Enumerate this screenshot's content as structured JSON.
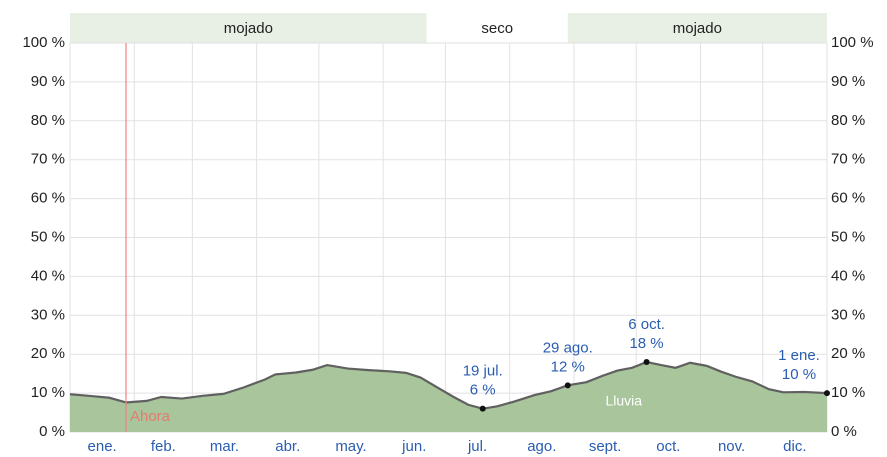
{
  "chart_data": {
    "type": "area",
    "xlim": [
      1,
      366
    ],
    "ylim": [
      0,
      100
    ],
    "yticks": [
      {
        "value": 0,
        "label": "0 %"
      },
      {
        "value": 10,
        "label": "10 %"
      },
      {
        "value": 20,
        "label": "20 %"
      },
      {
        "value": 30,
        "label": "30 %"
      },
      {
        "value": 40,
        "label": "40 %"
      },
      {
        "value": 50,
        "label": "50 %"
      },
      {
        "value": 60,
        "label": "60 %"
      },
      {
        "value": 70,
        "label": "70 %"
      },
      {
        "value": 80,
        "label": "80 %"
      },
      {
        "value": 90,
        "label": "90 %"
      },
      {
        "value": 100,
        "label": "100 %"
      }
    ],
    "months": [
      "ene.",
      "feb.",
      "mar.",
      "abr.",
      "may.",
      "jun.",
      "jul.",
      "ago.",
      "sept.",
      "oct.",
      "nov.",
      "dic."
    ],
    "month_starts": [
      1,
      32,
      60,
      91,
      121,
      152,
      182,
      213,
      244,
      274,
      305,
      335,
      366
    ],
    "grid": true,
    "seasons": [
      {
        "label": "mojado",
        "start": 1,
        "end": 173
      },
      {
        "label": "seco",
        "start": 173,
        "end": 241
      },
      {
        "label": "mojado",
        "start": 241,
        "end": 366
      }
    ],
    "now": {
      "label": "Ahora",
      "x": 28
    },
    "series": [
      {
        "name": "Lluvia",
        "color": "#a8c59c",
        "line_color": "#606060",
        "x": [
          1,
          10,
          20,
          28,
          38,
          45,
          55,
          65,
          75,
          85,
          95,
          100,
          110,
          118,
          125,
          135,
          145,
          155,
          163,
          170,
          178,
          186,
          193,
          200,
          207,
          215,
          225,
          233,
          241,
          250,
          258,
          265,
          272,
          279,
          286,
          293,
          300,
          308,
          315,
          322,
          330,
          338,
          345,
          355,
          366
        ],
        "values": [
          9.7,
          9.3,
          8.8,
          7.6,
          8.0,
          9.0,
          8.6,
          9.3,
          9.8,
          11.5,
          13.5,
          14.8,
          15.3,
          16.0,
          17.2,
          16.3,
          15.9,
          15.6,
          15.2,
          14.0,
          11.5,
          9.0,
          7.0,
          6.0,
          6.6,
          7.8,
          9.5,
          10.5,
          12.0,
          12.8,
          14.5,
          15.8,
          16.5,
          18.0,
          17.2,
          16.5,
          17.8,
          17.0,
          15.5,
          14.2,
          13.0,
          11.0,
          10.2,
          10.3,
          10.0
        ]
      }
    ],
    "annotations": [
      {
        "date": "19 jul.",
        "x": 200,
        "value": 6,
        "value_label": "6 %"
      },
      {
        "date": "29 ago.",
        "x": 241,
        "value": 12,
        "value_label": "12 %"
      },
      {
        "date": "6 oct.",
        "x": 279,
        "value": 18,
        "value_label": "18 %"
      },
      {
        "date": "1 ene.",
        "x": 366,
        "value": 10,
        "value_label": "10 %"
      }
    ]
  }
}
